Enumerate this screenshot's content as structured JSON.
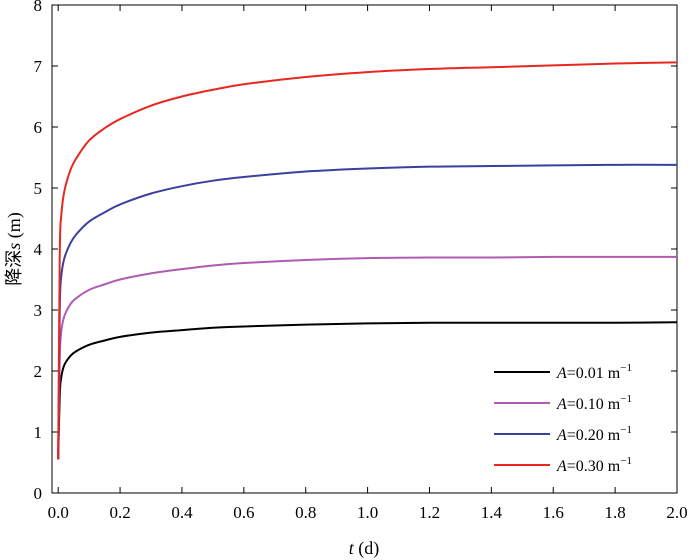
{
  "chart_data": {
    "type": "line",
    "title": "",
    "xlabel_var": "t",
    "xlabel_unit": " (d)",
    "ylabel_prefix": "降深",
    "ylabel_var": "s",
    "ylabel_unit": " (m)",
    "xlim": [
      -0.02,
      2.0
    ],
    "ylim": [
      0,
      8
    ],
    "xticks": [
      0.0,
      0.2,
      0.4,
      0.6,
      0.8,
      1.0,
      1.2,
      1.4,
      1.6,
      1.8,
      2.0
    ],
    "xtick_labels": [
      "0.0",
      "0.2",
      "0.4",
      "0.6",
      "0.8",
      "1.0",
      "1.2",
      "1.4",
      "1.6",
      "1.8",
      "2.0"
    ],
    "yticks": [
      0,
      1,
      2,
      3,
      4,
      5,
      6,
      7,
      8
    ],
    "ytick_labels": [
      "0",
      "1",
      "2",
      "3",
      "4",
      "5",
      "6",
      "7",
      "8"
    ],
    "grid": false,
    "legend_position": "bottom-right",
    "x": [
      0.0,
      0.005,
      0.01,
      0.02,
      0.04,
      0.06,
      0.1,
      0.15,
      0.2,
      0.3,
      0.4,
      0.5,
      0.6,
      0.8,
      1.0,
      1.2,
      1.4,
      1.6,
      1.8,
      2.0
    ],
    "series": [
      {
        "name_var": "A",
        "name_value": "=0.01 m",
        "name_exp": "−1",
        "color": "#000000",
        "values": [
          0.55,
          1.6,
          1.9,
          2.1,
          2.25,
          2.33,
          2.43,
          2.5,
          2.56,
          2.63,
          2.67,
          2.71,
          2.73,
          2.76,
          2.78,
          2.79,
          2.79,
          2.79,
          2.79,
          2.8
        ]
      },
      {
        "name_var": "A",
        "name_value": "=0.10 m",
        "name_exp": "−1",
        "color": "#b05bb0",
        "values": [
          0.55,
          2.2,
          2.65,
          2.9,
          3.1,
          3.2,
          3.33,
          3.42,
          3.5,
          3.6,
          3.67,
          3.73,
          3.77,
          3.82,
          3.85,
          3.86,
          3.86,
          3.87,
          3.87,
          3.87
        ]
      },
      {
        "name_var": "A",
        "name_value": "=0.20 m",
        "name_exp": "−1",
        "color": "#3a3fa0",
        "values": [
          0.55,
          3.0,
          3.55,
          3.85,
          4.1,
          4.25,
          4.45,
          4.6,
          4.73,
          4.91,
          5.03,
          5.12,
          5.18,
          5.27,
          5.32,
          5.35,
          5.36,
          5.37,
          5.38,
          5.38
        ]
      },
      {
        "name_var": "A",
        "name_value": "=0.30 m",
        "name_exp": "−1",
        "color": "#e8281e",
        "values": [
          0.55,
          3.9,
          4.55,
          4.95,
          5.3,
          5.5,
          5.78,
          5.98,
          6.13,
          6.35,
          6.5,
          6.61,
          6.7,
          6.82,
          6.9,
          6.95,
          6.98,
          7.01,
          7.04,
          7.06
        ]
      }
    ]
  }
}
